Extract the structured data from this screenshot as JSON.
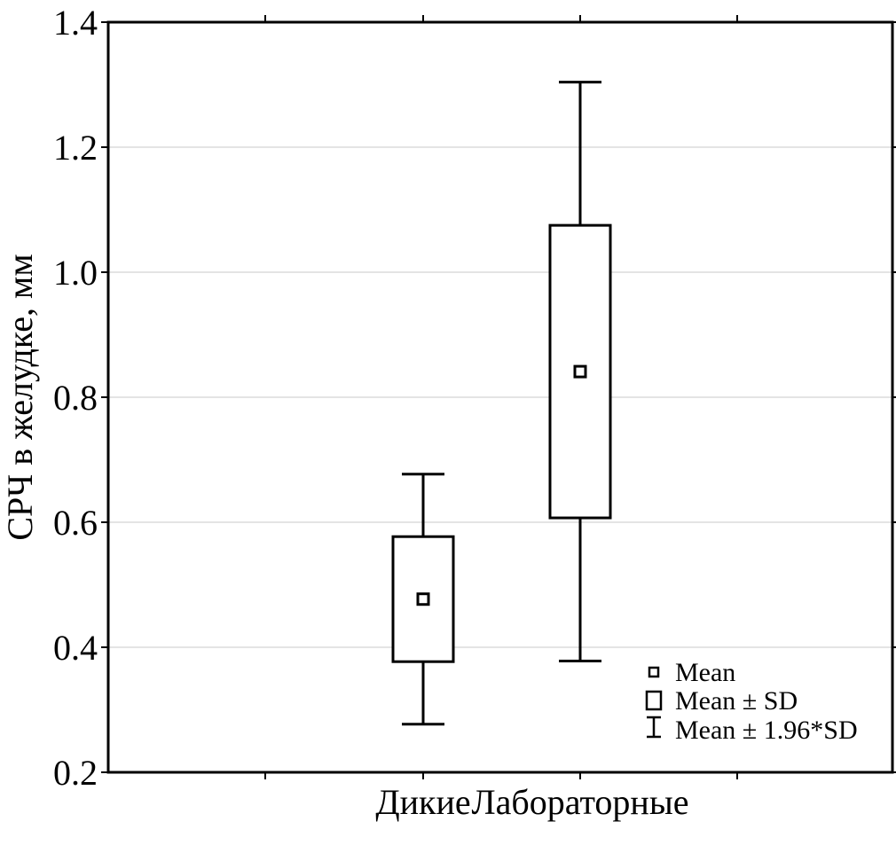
{
  "chart_data": {
    "type": "boxplot",
    "title": "",
    "xlabel": "",
    "ylabel": "СРЧ в желудке, мм",
    "ylim": [
      0.2,
      1.4
    ],
    "yticks": [
      "0.2",
      "0.4",
      "0.6",
      "0.8",
      "1.0",
      "1.2",
      "1.4"
    ],
    "grid": "horizontal",
    "categories": [
      "Дикие",
      "Лабораторные"
    ],
    "series": [
      {
        "category": "Дикие",
        "mean": 0.477,
        "sd_low": 0.377,
        "sd_high": 0.577,
        "ci_low": 0.277,
        "ci_high": 0.677
      },
      {
        "category": "Лабораторные",
        "mean": 0.841,
        "sd_low": 0.607,
        "sd_high": 1.075,
        "ci_low": 0.378,
        "ci_high": 1.304
      }
    ],
    "legend": {
      "position": "bottom-right",
      "items": [
        "Mean",
        "Mean ± SD",
        "Mean ± 1.96*SD"
      ]
    }
  }
}
